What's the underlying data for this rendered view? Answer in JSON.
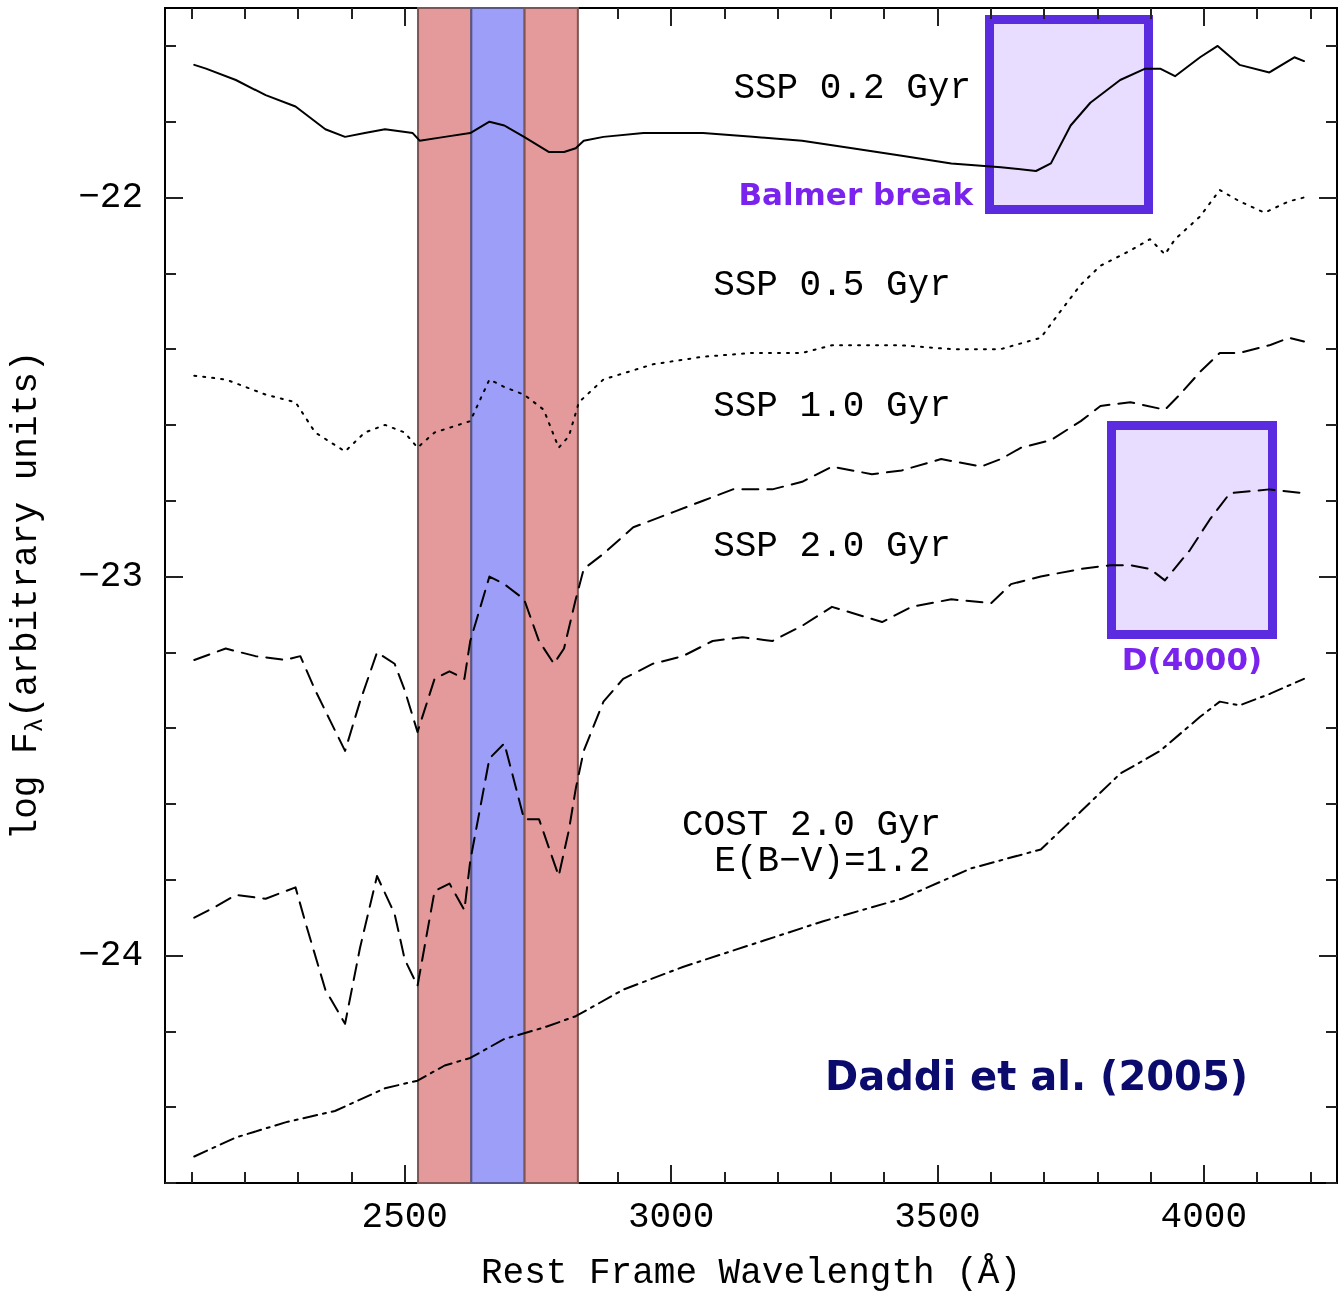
{
  "chart_data": {
    "type": "line",
    "xlabel": "Rest Frame Wavelength (Å)",
    "ylabel": "log F$_{λ}$(arbitrary units)",
    "xlim": [
      2050,
      4250
    ],
    "ylim": [
      -24.6,
      -21.5
    ],
    "xticks": [
      {
        "value": 2100,
        "label": null
      },
      {
        "value": 2200,
        "label": null
      },
      {
        "value": 2300,
        "label": null
      },
      {
        "value": 2400,
        "label": null
      },
      2500,
      {
        "value": 2600,
        "label": null
      },
      {
        "value": 2700,
        "label": null
      },
      {
        "value": 2800,
        "label": null
      },
      {
        "value": 2900,
        "label": null
      },
      3000,
      {
        "value": 3100,
        "label": null
      },
      {
        "value": 3200,
        "label": null
      },
      {
        "value": 3300,
        "label": null
      },
      {
        "value": 3400,
        "label": null
      },
      3500,
      {
        "value": 3600,
        "label": null
      },
      {
        "value": 3700,
        "label": null
      },
      {
        "value": 3800,
        "label": null
      },
      {
        "value": 3900,
        "label": null
      },
      4000,
      {
        "value": 4100,
        "label": null
      },
      {
        "value": 4200,
        "label": null
      }
    ],
    "yticks": [
      {
        "value": -24.6,
        "label": null
      },
      {
        "value": -24.4,
        "label": null
      },
      {
        "value": -24.2,
        "label": null
      },
      {
        "value": -24,
        "label": "−24"
      },
      {
        "value": -23.8,
        "label": null
      },
      {
        "value": -23.6,
        "label": null
      },
      {
        "value": -23.4,
        "label": null
      },
      {
        "value": -23.2,
        "label": null
      },
      {
        "value": -23,
        "label": "−23"
      },
      {
        "value": -22.8,
        "label": null
      },
      {
        "value": -22.6,
        "label": null
      },
      {
        "value": -22.4,
        "label": null
      },
      {
        "value": -22.2,
        "label": null
      },
      {
        "value": -22,
        "label": "−22"
      },
      {
        "value": -21.8,
        "label": null
      },
      {
        "value": -21.6,
        "label": null
      }
    ],
    "bands": [
      {
        "axis": "x",
        "from": 2525,
        "to": 2625,
        "color": "#e49a9a"
      },
      {
        "axis": "x",
        "from": 2625,
        "to": 2725,
        "color": "#9d9ef8"
      },
      {
        "axis": "x",
        "from": 2725,
        "to": 2825,
        "color": "#e49a9a"
      }
    ],
    "annotations": [
      "Balmer break",
      "D(4000)",
      "Daddi et al. (2005)"
    ],
    "series": [
      {
        "name": "SSP 0.2 Gyr",
        "color": "#000000",
        "line_style": "solid",
        "x": [
          2105,
          2127,
          2183,
          2239,
          2295,
          2351,
          2388,
          2425,
          2463,
          2515,
          2528,
          2575,
          2623,
          2659,
          2687,
          2724,
          2771,
          2799,
          2821,
          2836,
          2873,
          2948,
          3060,
          3153,
          3246,
          3340,
          3433,
          3526,
          3619,
          3685,
          3713,
          3750,
          3787,
          3843,
          3890,
          3918,
          3946,
          3993,
          4026,
          4067,
          4123,
          4170,
          4188
        ],
        "values": [
          -21.65,
          -21.66,
          -21.69,
          -21.73,
          -21.76,
          -21.82,
          -21.84,
          -21.83,
          -21.82,
          -21.83,
          -21.85,
          -21.84,
          -21.83,
          -21.8,
          -21.81,
          -21.84,
          -21.88,
          -21.88,
          -21.87,
          -21.85,
          -21.84,
          -21.83,
          -21.83,
          -21.84,
          -21.85,
          -21.87,
          -21.89,
          -21.91,
          -21.92,
          -21.93,
          -21.91,
          -21.81,
          -21.75,
          -21.69,
          -21.66,
          -21.66,
          -21.68,
          -21.63,
          -21.6,
          -21.65,
          -21.67,
          -21.63,
          -21.64
        ]
      },
      {
        "name": "SSP 0.5 Gyr",
        "color": "#000000",
        "line_style": "dotted",
        "x": [
          2105,
          2164,
          2239,
          2295,
          2332,
          2388,
          2425,
          2463,
          2500,
          2524,
          2556,
          2623,
          2659,
          2687,
          2724,
          2761,
          2789,
          2808,
          2827,
          2873,
          2966,
          3060,
          3153,
          3246,
          3302,
          3433,
          3526,
          3619,
          3694,
          3731,
          3769,
          3806,
          3862,
          3899,
          3927,
          3946,
          3993,
          4030,
          4067,
          4114,
          4160,
          4188
        ],
        "values": [
          -22.47,
          -22.48,
          -22.52,
          -22.54,
          -22.62,
          -22.67,
          -22.62,
          -22.6,
          -22.62,
          -22.66,
          -22.62,
          -22.59,
          -22.48,
          -22.5,
          -22.52,
          -22.56,
          -22.66,
          -22.63,
          -22.54,
          -22.48,
          -22.44,
          -22.42,
          -22.41,
          -22.41,
          -22.39,
          -22.39,
          -22.4,
          -22.4,
          -22.37,
          -22.3,
          -22.23,
          -22.18,
          -22.14,
          -22.11,
          -22.15,
          -22.11,
          -22.05,
          -21.98,
          -22.01,
          -22.04,
          -22.01,
          -22.0
        ]
      },
      {
        "name": "SSP 1.0 Gyr",
        "color": "#000000",
        "line_style": "dashed",
        "x": [
          2105,
          2164,
          2220,
          2276,
          2304,
          2332,
          2360,
          2388,
          2416,
          2448,
          2481,
          2500,
          2524,
          2556,
          2584,
          2612,
          2623,
          2659,
          2687,
          2724,
          2752,
          2780,
          2799,
          2821,
          2836,
          2873,
          2929,
          3004,
          3060,
          3116,
          3190,
          3246,
          3302,
          3377,
          3433,
          3507,
          3582,
          3619,
          3657,
          3713,
          3769,
          3806,
          3862,
          3927,
          3955,
          3993,
          4030,
          4067,
          4123,
          4160,
          4188
        ],
        "values": [
          -23.22,
          -23.19,
          -23.21,
          -23.22,
          -23.21,
          -23.3,
          -23.38,
          -23.46,
          -23.33,
          -23.2,
          -23.23,
          -23.3,
          -23.41,
          -23.27,
          -23.25,
          -23.27,
          -23.17,
          -23.0,
          -23.02,
          -23.06,
          -23.17,
          -23.23,
          -23.19,
          -23.06,
          -22.98,
          -22.94,
          -22.87,
          -22.83,
          -22.8,
          -22.77,
          -22.77,
          -22.75,
          -22.71,
          -22.73,
          -22.72,
          -22.69,
          -22.71,
          -22.69,
          -22.66,
          -22.64,
          -22.59,
          -22.55,
          -22.54,
          -22.56,
          -22.52,
          -22.46,
          -22.41,
          -22.41,
          -22.39,
          -22.37,
          -22.38
        ]
      },
      {
        "name": "SSP 2.0 Gyr",
        "color": "#000000",
        "line_style": "dashed",
        "x": [
          2105,
          2146,
          2183,
          2239,
          2295,
          2313,
          2351,
          2388,
          2416,
          2448,
          2481,
          2500,
          2524,
          2556,
          2584,
          2612,
          2623,
          2659,
          2687,
          2724,
          2752,
          2789,
          2808,
          2821,
          2836,
          2873,
          2910,
          2966,
          3022,
          3078,
          3134,
          3190,
          3246,
          3302,
          3396,
          3451,
          3526,
          3601,
          3638,
          3694,
          3769,
          3825,
          3862,
          3899,
          3927,
          3974,
          4011,
          4049,
          4123,
          4188
        ],
        "values": [
          -23.9,
          -23.87,
          -23.84,
          -23.85,
          -23.82,
          -23.91,
          -24.09,
          -24.18,
          -23.98,
          -23.79,
          -23.89,
          -24.01,
          -24.08,
          -23.83,
          -23.81,
          -23.88,
          -23.75,
          -23.48,
          -23.44,
          -23.64,
          -23.64,
          -23.79,
          -23.67,
          -23.56,
          -23.46,
          -23.33,
          -23.27,
          -23.23,
          -23.21,
          -23.17,
          -23.16,
          -23.17,
          -23.13,
          -23.08,
          -23.12,
          -23.08,
          -23.06,
          -23.07,
          -23.02,
          -23.0,
          -22.98,
          -22.97,
          -22.97,
          -22.98,
          -23.01,
          -22.93,
          -22.85,
          -22.78,
          -22.77,
          -22.78
        ]
      },
      {
        "name": "COST 2.0 Gyr E(B−V)=1.2",
        "color": "#000000",
        "line_style": "dashdot",
        "x": [
          2105,
          2183,
          2276,
          2369,
          2463,
          2524,
          2575,
          2623,
          2687,
          2761,
          2821,
          2910,
          3022,
          3153,
          3284,
          3433,
          3563,
          3694,
          3769,
          3843,
          3918,
          3993,
          4030,
          4067,
          4123,
          4188
        ],
        "values": [
          -24.53,
          -24.48,
          -24.44,
          -24.41,
          -24.35,
          -24.33,
          -24.29,
          -24.27,
          -24.22,
          -24.19,
          -24.16,
          -24.09,
          -24.03,
          -23.97,
          -23.91,
          -23.85,
          -23.77,
          -23.72,
          -23.62,
          -23.52,
          -23.46,
          -23.37,
          -23.33,
          -23.34,
          -23.31,
          -23.27
        ]
      }
    ]
  }
}
